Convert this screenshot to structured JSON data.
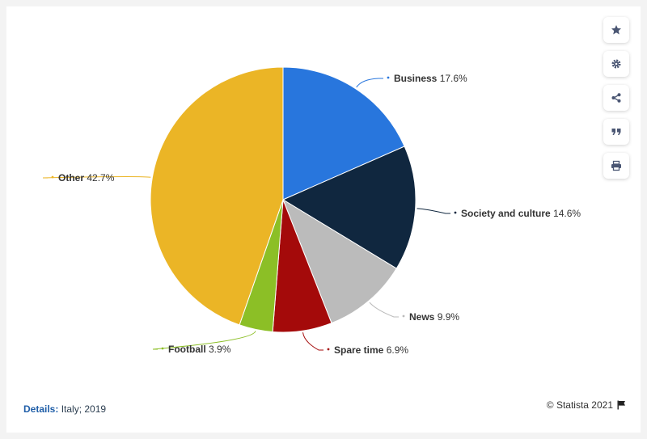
{
  "chart_data": {
    "type": "pie",
    "slices": [
      {
        "name": "Business",
        "value": 17.6,
        "label": "17.6%",
        "color": "#2876dd"
      },
      {
        "name": "Society and culture",
        "value": 14.6,
        "label": "14.6%",
        "color": "#10273f"
      },
      {
        "name": "News",
        "value": 9.9,
        "label": "9.9%",
        "color": "#bbbbbb"
      },
      {
        "name": "Spare time",
        "value": 6.9,
        "label": "6.9%",
        "color": "#a40a0a"
      },
      {
        "name": "Football",
        "value": 3.9,
        "label": "3.9%",
        "color": "#8cbf26"
      },
      {
        "name": "Other",
        "value": 42.7,
        "label": "42.7%",
        "color": "#ebb526"
      }
    ]
  },
  "toolbar": {
    "buttons": [
      "star-icon",
      "gear-icon",
      "share-icon",
      "quote-icon",
      "print-icon"
    ]
  },
  "footer": {
    "details_label": "Details:",
    "details_value": "Italy; 2019",
    "credit": "© Statista 2021"
  }
}
